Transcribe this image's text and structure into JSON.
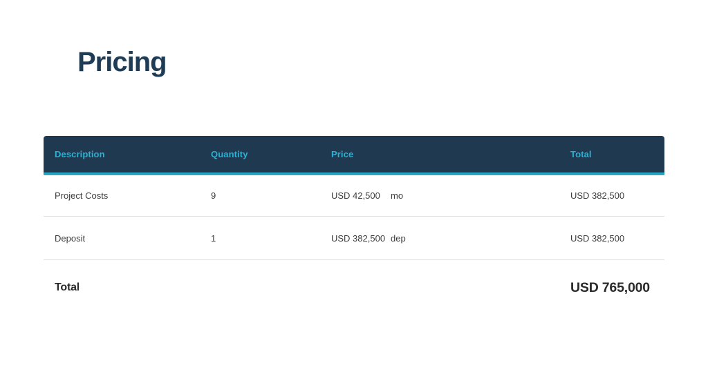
{
  "page": {
    "title": "Pricing"
  },
  "colors": {
    "header_bg": "#1F3A50",
    "accent_cyan": "#2CB1D4",
    "header_border": "#2AA6C4",
    "title_color": "#1E3C55",
    "body_text": "#3C3C3C",
    "strong_text": "#2A2A2A",
    "divider": "#E0E0E0",
    "page_bg": "#FFFFFF"
  },
  "table": {
    "columns": [
      "Description",
      "Quantity",
      "Price",
      "Total"
    ],
    "rows": [
      {
        "description": "Project Costs",
        "quantity": "9",
        "price": "USD 42,500",
        "unit": "mo",
        "total": "USD 382,500"
      },
      {
        "description": "Deposit",
        "quantity": "1",
        "price": "USD 382,500",
        "unit": "dep",
        "total": "USD 382,500"
      }
    ],
    "summary": {
      "label": "Total",
      "amount": "USD 765,000"
    }
  }
}
